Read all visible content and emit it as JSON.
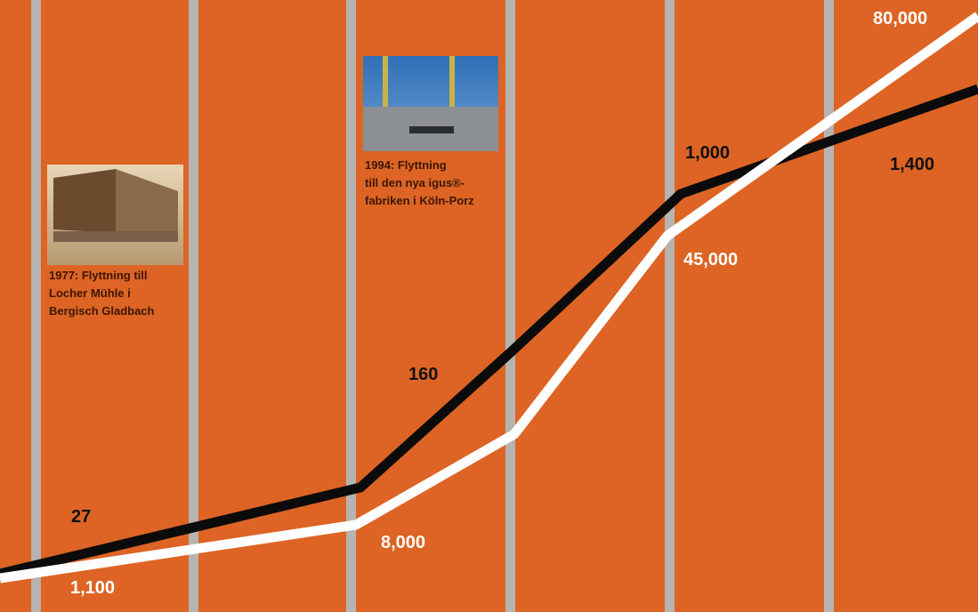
{
  "labels": {
    "black_line": [
      "27",
      "160",
      "1,000",
      "1,400"
    ],
    "white_line": [
      "1,100",
      "8,000",
      "45,000",
      "80,000"
    ]
  },
  "captions": [
    {
      "lines": [
        "1977: Flyttning till",
        "Locher Mühle i",
        "Bergisch Gladbach"
      ]
    },
    {
      "lines": [
        "1994: Flyttning",
        "till den nya igus®-",
        "fabriken i Köln-Porz"
      ]
    }
  ]
}
